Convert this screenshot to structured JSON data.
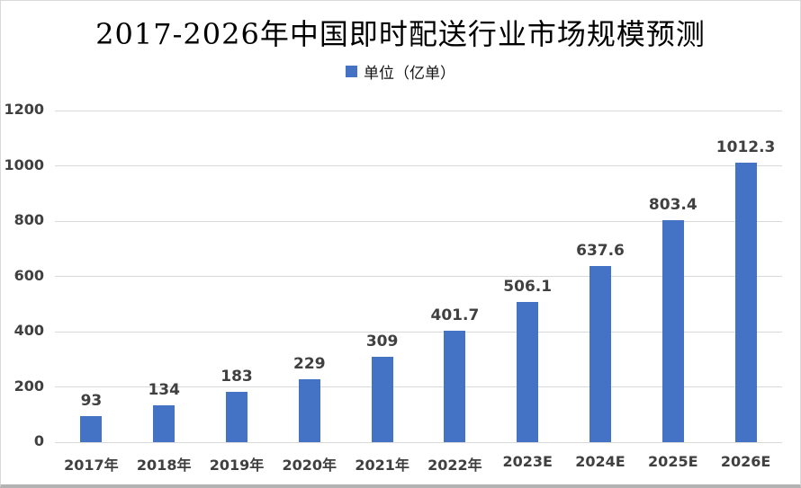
{
  "chart_data": {
    "type": "bar",
    "title": "2017-2026年中国即时配送行业市场规模预测",
    "legend": "单位（亿单）",
    "legend_position": "top",
    "categories": [
      "2017年",
      "2018年",
      "2019年",
      "2020年",
      "2021年",
      "2022年",
      "2023E",
      "2024E",
      "2025E",
      "2026E"
    ],
    "values": [
      93,
      134,
      183,
      229,
      309,
      401.7,
      506.1,
      637.6,
      803.4,
      1012.3
    ],
    "value_labels": [
      "93",
      "134",
      "183",
      "229",
      "309",
      "401.7",
      "506.1",
      "637.6",
      "803.4",
      "1012.3"
    ],
    "xlabel": "",
    "ylabel": "",
    "ylim": [
      0,
      1200
    ],
    "ytick_step": 200,
    "grid": true,
    "bar_color": "#4472C4",
    "gridline_color": "#D9D9D9",
    "label_color": "#404040",
    "title_color": "#000000"
  }
}
